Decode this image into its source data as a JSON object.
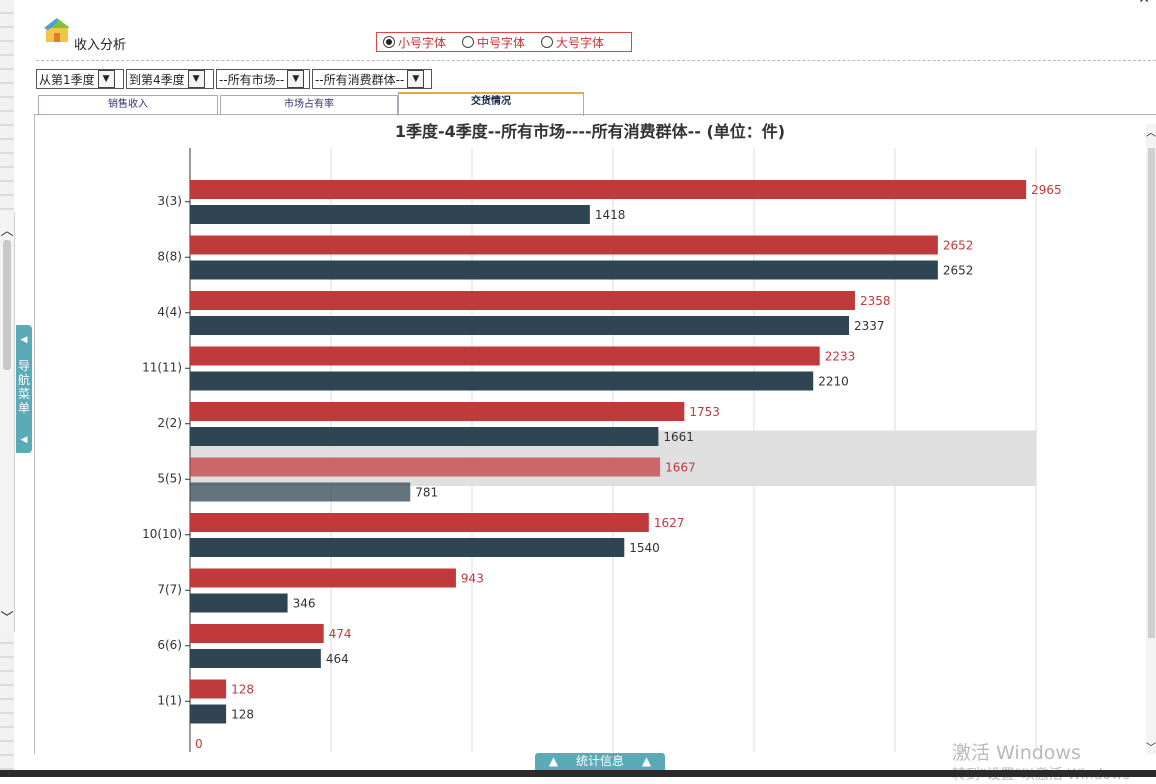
{
  "header": {
    "title": "收入分析",
    "font_options": [
      {
        "label": "小号字体",
        "selected": true
      },
      {
        "label": "中号字体",
        "selected": false
      },
      {
        "label": "大号字体",
        "selected": false
      }
    ]
  },
  "filters": {
    "from_quarter": "从第1季度",
    "to_quarter": "到第4季度",
    "market": "--所有市场--",
    "consumer_group": "--所有消费群体--"
  },
  "tabs": [
    {
      "label": "销售收入",
      "active": false
    },
    {
      "label": "市场占有率",
      "active": false
    },
    {
      "label": "交货情况",
      "active": true
    }
  ],
  "nav_menu": {
    "label": "导航菜单"
  },
  "footer": {
    "stats_label": "统计信息"
  },
  "watermark": {
    "line1": "激活 Windows",
    "line2": "转到\"设置\"以激活 Windows"
  },
  "colors": {
    "series_red": "#c0393b",
    "series_dark": "#2f4553",
    "accent_tab": "#e8a838",
    "nav_teal": "#5aaab8"
  },
  "chart_data": {
    "type": "bar",
    "orientation": "horizontal",
    "title": "1季度-4季度--所有市场----所有消费群体-- (单位：件)",
    "categories": [
      "3(3)",
      "8(8)",
      "4(4)",
      "11(11)",
      "2(2)",
      "5(5)",
      "10(10)",
      "7(7)",
      "6(6)",
      "1(1)"
    ],
    "series": [
      {
        "values": [
          2965,
          2652,
          2358,
          2233,
          1753,
          1667,
          1627,
          943,
          474,
          128
        ]
      },
      {
        "values": [
          1418,
          2652,
          2337,
          2210,
          1661,
          781,
          1540,
          346,
          464,
          128
        ]
      }
    ],
    "xlim": [
      0,
      3000
    ],
    "x_first_tick": "0",
    "highlighted_category": "5(5)",
    "grid": true
  }
}
